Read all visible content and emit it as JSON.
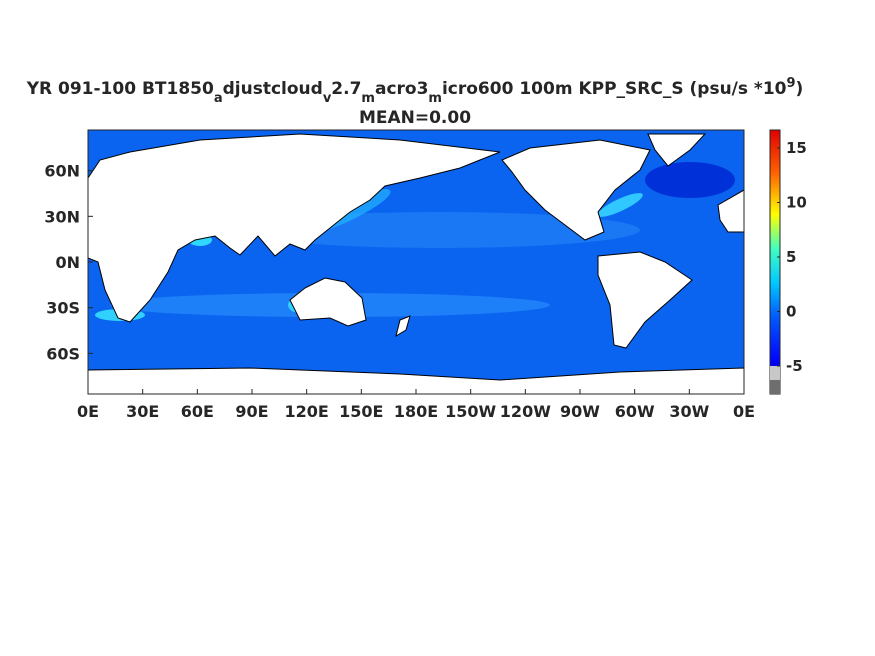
{
  "header": {
    "title": [
      {
        "text": "YR 091-100 BT1850",
        "style": "normal"
      },
      {
        "text": "a",
        "style": "sub"
      },
      {
        "text": "djustcloud",
        "style": "normal"
      },
      {
        "text": "v",
        "style": "sub"
      },
      {
        "text": "2.7",
        "style": "normal"
      },
      {
        "text": "m",
        "style": "sub"
      },
      {
        "text": "acro3",
        "style": "normal"
      },
      {
        "text": "m",
        "style": "sub"
      },
      {
        "text": "icro600 100m KPP_SRC_S (psu/s *10",
        "style": "normal"
      },
      {
        "text": "9",
        "style": "sup"
      },
      {
        "text": ")",
        "style": "normal"
      }
    ],
    "subtitle": "MEAN=0.00"
  },
  "map": {
    "lonlim": [
      0,
      360
    ],
    "latlim": [
      -86.7,
      86.7
    ],
    "lon_ticks": [
      {
        "value": 0,
        "label": "0E"
      },
      {
        "value": 30,
        "label": "30E"
      },
      {
        "value": 60,
        "label": "60E"
      },
      {
        "value": 90,
        "label": "90E"
      },
      {
        "value": 120,
        "label": "120E"
      },
      {
        "value": 150,
        "label": "150E"
      },
      {
        "value": 180,
        "label": "180E"
      },
      {
        "value": 210,
        "label": "150W"
      },
      {
        "value": 240,
        "label": "120W"
      },
      {
        "value": 270,
        "label": "90W"
      },
      {
        "value": 300,
        "label": "60W"
      },
      {
        "value": 330,
        "label": "30W"
      },
      {
        "value": 360,
        "label": "0E"
      }
    ],
    "lat_ticks": [
      {
        "value": 60,
        "label": "60N"
      },
      {
        "value": 30,
        "label": "30N"
      },
      {
        "value": 0,
        "label": "0N"
      },
      {
        "value": -30,
        "label": "30S"
      },
      {
        "value": -60,
        "label": "60S"
      }
    ]
  },
  "colorbar": {
    "clim": [
      -7.57,
      16.65
    ],
    "ticks": [
      -5,
      0,
      5,
      10,
      15
    ]
  }
}
